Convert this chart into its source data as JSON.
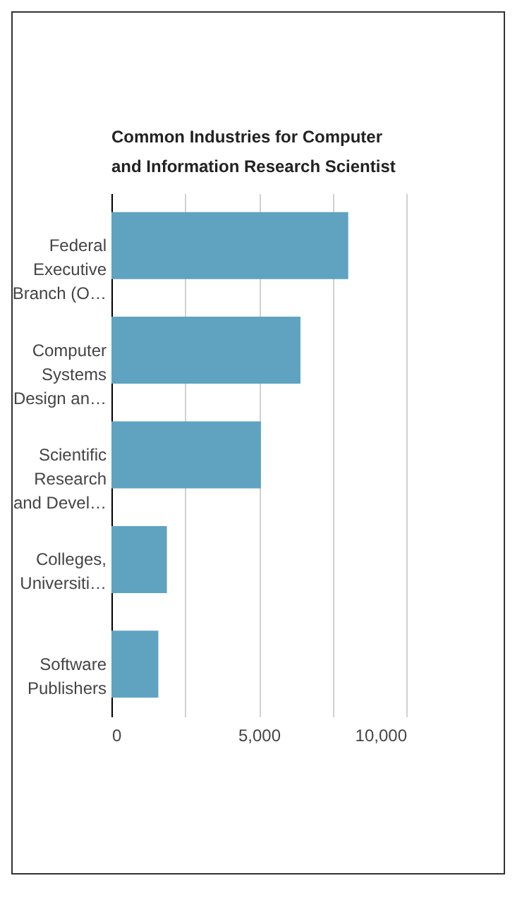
{
  "chart_data": {
    "type": "bar",
    "orientation": "horizontal",
    "title": "Common Industries for Computer and Information Research Scientist",
    "categories": [
      "Federal Executive Branch (O…",
      "Computer Systems Design an…",
      "Scientific Research and Devel…",
      "Colleges, Universiti…",
      "Software Publishers"
    ],
    "values": [
      8030,
      6410,
      5070,
      1880,
      1590
    ],
    "color": "#5fa3c1",
    "xlim": [
      0,
      10000
    ],
    "xticks": [
      0,
      {
        "value": 2500,
        "label": null
      },
      {
        "value": 5000,
        "label": "5,000"
      },
      {
        "value": 7500,
        "label": null
      },
      {
        "value": 10000,
        "label": "10,000"
      }
    ],
    "grid": "x"
  }
}
